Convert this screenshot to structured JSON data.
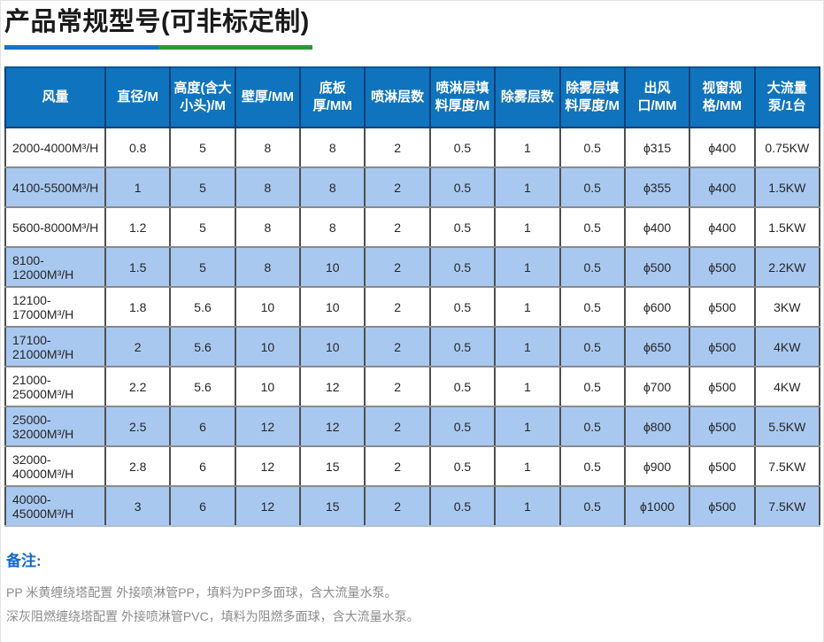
{
  "page": {
    "title": "产品常规型号(可非标定制)",
    "accent_blue": "#1a6fc8",
    "accent_green": "#2b9837"
  },
  "table": {
    "header_bg": "#0f74bd",
    "alt_row_bg": "#a8c8f0",
    "columns": [
      "风量",
      "直径/M",
      "高度(含大小头)/M",
      "壁厚/MM",
      "底板厚/MM",
      "喷淋层数",
      "喷淋层填料厚度/M",
      "除雾层数",
      "除雾层填料厚度/M",
      "出风口/MM",
      "视窗规格/MM",
      "大流量泵/1台"
    ],
    "rows": [
      [
        "2000-4000M³/H",
        "0.8",
        "5",
        "8",
        "8",
        "2",
        "0.5",
        "1",
        "0.5",
        "ϕ315",
        "ϕ400",
        "0.75KW"
      ],
      [
        "4100-5500M³/H",
        "1",
        "5",
        "8",
        "8",
        "2",
        "0.5",
        "1",
        "0.5",
        "ϕ355",
        "ϕ400",
        "1.5KW"
      ],
      [
        "5600-8000M³/H",
        "1.2",
        "5",
        "8",
        "8",
        "2",
        "0.5",
        "1",
        "0.5",
        "ϕ400",
        "ϕ400",
        "1.5KW"
      ],
      [
        "8100-12000M³/H",
        "1.5",
        "5",
        "8",
        "10",
        "2",
        "0.5",
        "1",
        "0.5",
        "ϕ500",
        "ϕ500",
        "2.2KW"
      ],
      [
        "12100-17000M³/H",
        "1.8",
        "5.6",
        "10",
        "10",
        "2",
        "0.5",
        "1",
        "0.5",
        "ϕ600",
        "ϕ500",
        "3KW"
      ],
      [
        "17100-21000M³/H",
        "2",
        "5.6",
        "10",
        "10",
        "2",
        "0.5",
        "1",
        "0.5",
        "ϕ650",
        "ϕ500",
        "4KW"
      ],
      [
        "21000-25000M³/H",
        "2.2",
        "5.6",
        "10",
        "12",
        "2",
        "0.5",
        "1",
        "0.5",
        "ϕ700",
        "ϕ500",
        "4KW"
      ],
      [
        "25000-32000M³/H",
        "2.5",
        "6",
        "12",
        "12",
        "2",
        "0.5",
        "1",
        "0.5",
        "ϕ800",
        "ϕ500",
        "5.5KW"
      ],
      [
        "32000-40000M³/H",
        "2.8",
        "6",
        "12",
        "15",
        "2",
        "0.5",
        "1",
        "0.5",
        "ϕ900",
        "ϕ500",
        "7.5KW"
      ],
      [
        "40000-45000M³/H",
        "3",
        "6",
        "12",
        "15",
        "2",
        "0.5",
        "1",
        "0.5",
        "ϕ1000",
        "ϕ500",
        "7.5KW"
      ]
    ]
  },
  "notes": {
    "label": "备注:",
    "lines": [
      "PP 米黄缠绕塔配置 外接喷淋管PP，填料为PP多面球，含大流量水泵。",
      "深灰阻燃缠绕塔配置 外接喷淋管PVC，填料为阻燃多面球，含大流量水泵。"
    ]
  }
}
